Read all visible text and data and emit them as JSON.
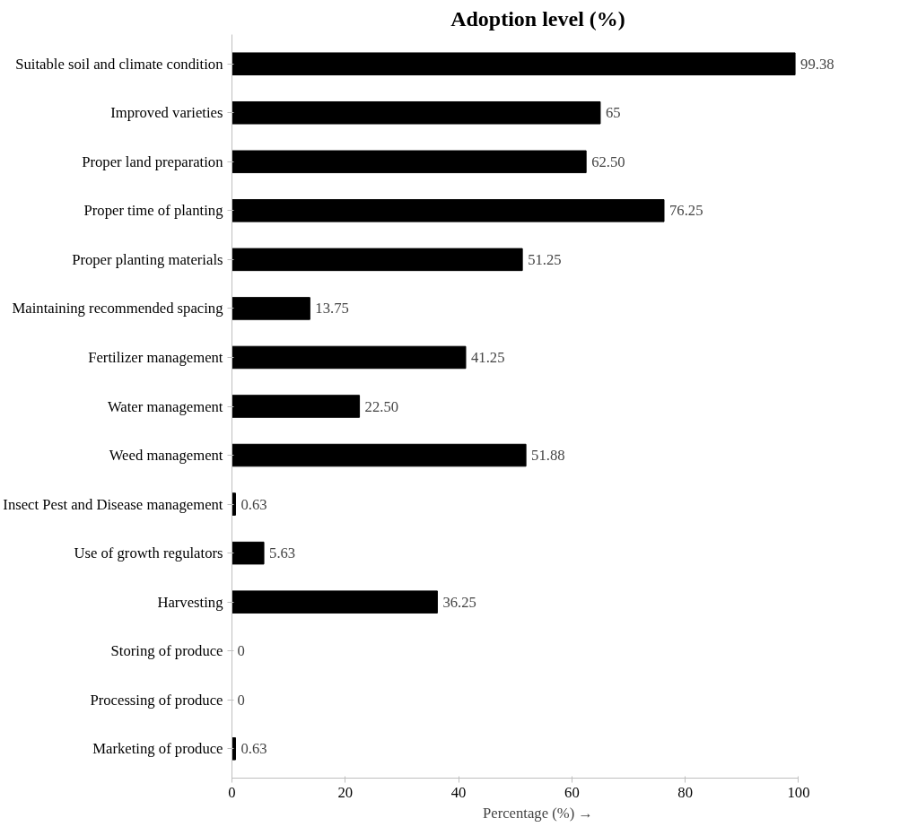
{
  "chart_data": {
    "type": "bar",
    "orientation": "horizontal",
    "title": "Adoption level (%)",
    "xlabel": "Percentage (%) →",
    "categories": [
      "Suitable soil and climate condition",
      "Improved varieties",
      "Proper land preparation",
      "Proper time of planting",
      "Proper planting materials",
      "Maintaining recommended spacing",
      "Fertilizer management",
      "Water management",
      "Weed management",
      "Insect Pest and Disease management",
      "Use of growth regulators",
      "Harvesting",
      "Storing of produce",
      "Processing of produce",
      "Marketing of produce"
    ],
    "values": [
      99.38,
      65,
      62.5,
      76.25,
      51.25,
      13.75,
      41.25,
      22.5,
      51.88,
      0.63,
      5.63,
      36.25,
      0,
      0,
      0.63
    ],
    "value_labels": [
      "99.38",
      "65",
      "62.50",
      "76.25",
      "51.25",
      "13.75",
      "41.25",
      "22.50",
      "51.88",
      "0.63",
      "5.63",
      "36.25",
      "0",
      "0",
      "0.63"
    ],
    "color": "#000000",
    "xlim": [
      0,
      100
    ],
    "xticks": [
      0,
      20,
      40,
      60,
      80,
      100
    ],
    "grid": false
  }
}
